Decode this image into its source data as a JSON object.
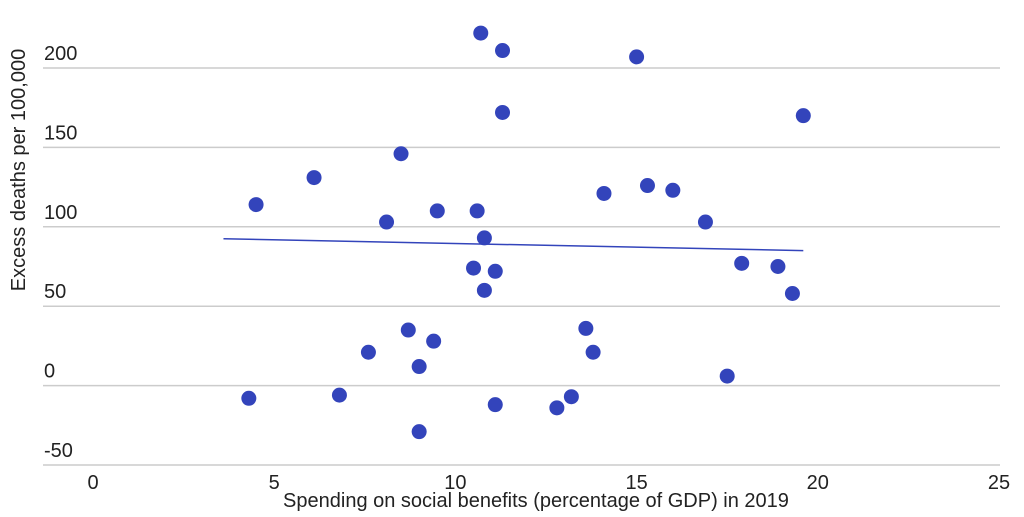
{
  "chart_data": {
    "type": "scatter",
    "xlabel": "Spending on social benefits (percentage of GDP) in 2019",
    "ylabel": "Excess deaths per 100,000",
    "xlim": [
      0,
      25
    ],
    "ylim": [
      -50,
      200
    ],
    "xticks": [
      "0",
      "5",
      "10",
      "15",
      "20",
      "25"
    ],
    "yticks": [
      "-50",
      "0",
      "50",
      "100",
      "150",
      "200"
    ],
    "grid": "horizontal",
    "colors": {
      "points": "#3344bb",
      "trendline": "#3344bb",
      "grid": "#cccccc"
    },
    "points": [
      {
        "x": 10.7,
        "y": 222
      },
      {
        "x": 11.3,
        "y": 211
      },
      {
        "x": 15.0,
        "y": 207
      },
      {
        "x": 11.3,
        "y": 172
      },
      {
        "x": 19.6,
        "y": 170
      },
      {
        "x": 8.5,
        "y": 146
      },
      {
        "x": 6.1,
        "y": 131
      },
      {
        "x": 4.5,
        "y": 114
      },
      {
        "x": 8.1,
        "y": 103
      },
      {
        "x": 9.5,
        "y": 110
      },
      {
        "x": 10.6,
        "y": 110
      },
      {
        "x": 10.8,
        "y": 93
      },
      {
        "x": 14.1,
        "y": 121
      },
      {
        "x": 15.3,
        "y": 126
      },
      {
        "x": 16.0,
        "y": 123
      },
      {
        "x": 16.9,
        "y": 103
      },
      {
        "x": 10.5,
        "y": 74
      },
      {
        "x": 11.1,
        "y": 72
      },
      {
        "x": 10.8,
        "y": 60
      },
      {
        "x": 17.9,
        "y": 77
      },
      {
        "x": 18.9,
        "y": 75
      },
      {
        "x": 19.3,
        "y": 58
      },
      {
        "x": 8.7,
        "y": 35
      },
      {
        "x": 9.4,
        "y": 28
      },
      {
        "x": 7.6,
        "y": 21
      },
      {
        "x": 9.0,
        "y": 12
      },
      {
        "x": 13.6,
        "y": 36
      },
      {
        "x": 13.8,
        "y": 21
      },
      {
        "x": 17.5,
        "y": 6
      },
      {
        "x": 4.3,
        "y": -8
      },
      {
        "x": 6.8,
        "y": -6
      },
      {
        "x": 11.1,
        "y": -12
      },
      {
        "x": 12.8,
        "y": -14
      },
      {
        "x": 13.2,
        "y": -7
      },
      {
        "x": 9.0,
        "y": -29
      }
    ],
    "trendline": [
      {
        "x": 3.6,
        "y": 92.5
      },
      {
        "x": 19.6,
        "y": 85
      }
    ]
  }
}
